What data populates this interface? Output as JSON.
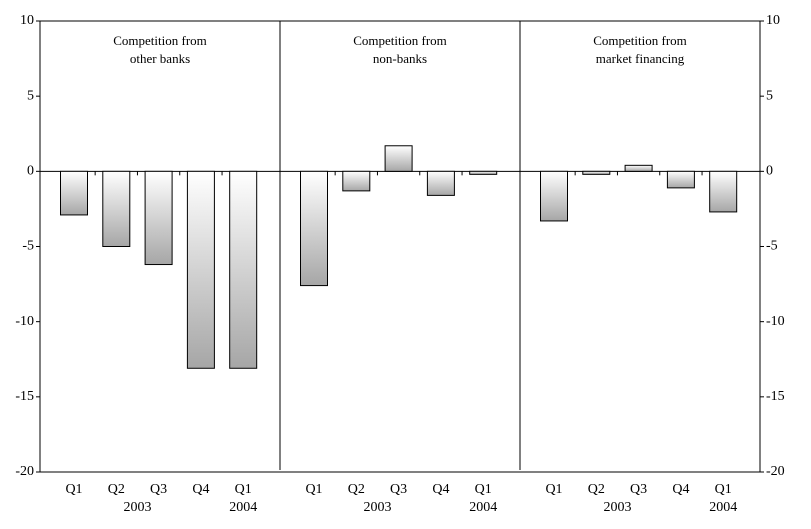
{
  "chart_data": {
    "type": "bar",
    "categories": [
      "Q1",
      "Q2",
      "Q3",
      "Q4",
      "Q1"
    ],
    "year_labels": [
      "2003",
      "2004"
    ],
    "panels": [
      {
        "title": [
          "Competition from",
          "other banks"
        ],
        "values": [
          -2.9,
          -5.0,
          -6.2,
          -13.1,
          -13.1
        ]
      },
      {
        "title": [
          "Competition from",
          "non-banks"
        ],
        "values": [
          -7.6,
          -1.3,
          1.7,
          -1.6,
          -0.2
        ]
      },
      {
        "title": [
          "Competition from",
          "market financing"
        ],
        "values": [
          -3.3,
          -0.2,
          0.4,
          -1.1,
          -2.7
        ]
      }
    ],
    "ylim": [
      -20,
      10
    ],
    "yticks": [
      -20,
      -15,
      -10,
      -5,
      0,
      5,
      10
    ],
    "y2lim": [
      -20,
      10
    ],
    "y2ticks": [
      -20,
      -15,
      -10,
      -5,
      0,
      5,
      10
    ],
    "color": "#a6a6a6"
  }
}
